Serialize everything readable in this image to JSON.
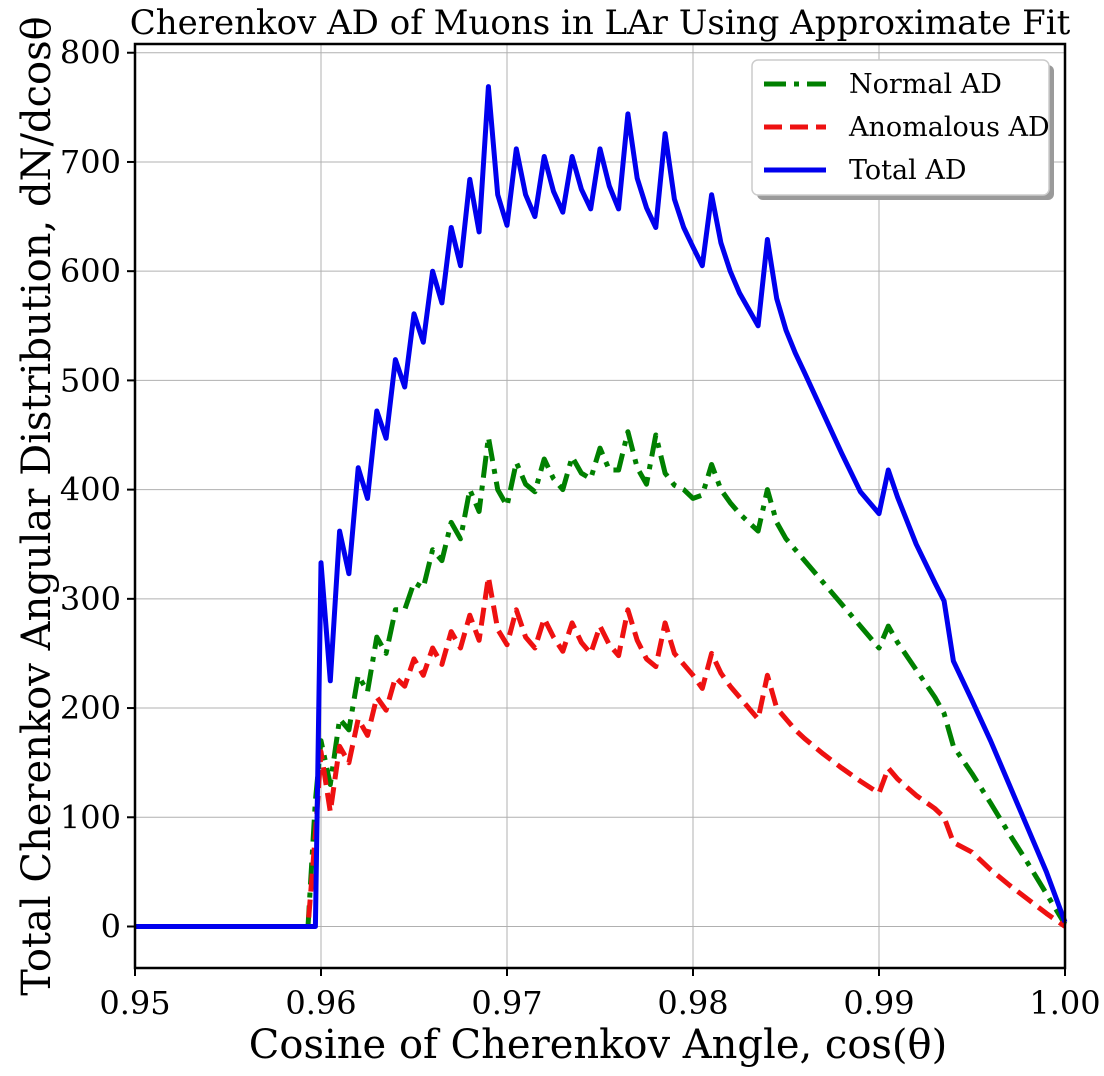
{
  "chart_data": {
    "type": "line",
    "title": "Cherenkov AD of Muons in LAr Using Approximate Fit",
    "xlabel": "Cosine of Cherenkov Angle, cos(θ)",
    "ylabel": "Total Cherenkov Angular Distribution, dN/dcosθ",
    "xlim": [
      0.95,
      1.0
    ],
    "ylim": [
      -38,
      808
    ],
    "xticks": [
      0.95,
      0.96,
      0.97,
      0.98,
      0.99,
      1.0
    ],
    "xtick_labels": [
      "0.95",
      "0.96",
      "0.97",
      "0.98",
      "0.99",
      "1.00"
    ],
    "yticks": [
      0,
      100,
      200,
      300,
      400,
      500,
      600,
      700,
      800
    ],
    "ytick_labels": [
      "0",
      "100",
      "200",
      "300",
      "400",
      "500",
      "600",
      "700",
      "800"
    ],
    "grid": true,
    "legend_position": "top-right",
    "series": [
      {
        "name": "Normal AD",
        "color": "#008000",
        "dash": "dashdot",
        "x": [
          0.95,
          0.9593,
          0.9597,
          0.96,
          0.9605,
          0.961,
          0.9615,
          0.962,
          0.9625,
          0.963,
          0.9635,
          0.964,
          0.9645,
          0.965,
          0.9655,
          0.966,
          0.9665,
          0.967,
          0.9675,
          0.968,
          0.9685,
          0.969,
          0.9695,
          0.97,
          0.9705,
          0.971,
          0.9715,
          0.972,
          0.9725,
          0.973,
          0.9735,
          0.974,
          0.9745,
          0.975,
          0.9755,
          0.976,
          0.9765,
          0.977,
          0.9775,
          0.978,
          0.9785,
          0.979,
          0.9795,
          0.98,
          0.9805,
          0.981,
          0.9815,
          0.982,
          0.9825,
          0.983,
          0.9835,
          0.984,
          0.9845,
          0.985,
          0.9855,
          0.986,
          0.987,
          0.988,
          0.989,
          0.99,
          0.9905,
          0.991,
          0.992,
          0.993,
          0.9935,
          0.994,
          0.995,
          0.996,
          0.997,
          0.998,
          0.999,
          1.0
        ],
        "y": [
          0,
          0,
          115,
          170,
          130,
          190,
          180,
          230,
          215,
          265,
          250,
          290,
          290,
          315,
          310,
          345,
          335,
          370,
          355,
          400,
          380,
          448,
          400,
          385,
          425,
          405,
          398,
          428,
          410,
          400,
          430,
          415,
          410,
          438,
          418,
          418,
          453,
          420,
          405,
          450,
          415,
          404,
          400,
          392,
          395,
          423,
          400,
          388,
          378,
          370,
          362,
          400,
          370,
          355,
          345,
          335,
          315,
          295,
          275,
          255,
          275,
          260,
          235,
          210,
          195,
          165,
          140,
          113,
          85,
          58,
          30,
          2
        ]
      },
      {
        "name": "Anomalous AD",
        "color": "#ee1111",
        "dash": "dashed",
        "x": [
          0.95,
          0.9593,
          0.9597,
          0.96,
          0.9605,
          0.961,
          0.9615,
          0.962,
          0.9625,
          0.963,
          0.9635,
          0.964,
          0.9645,
          0.965,
          0.9655,
          0.966,
          0.9665,
          0.967,
          0.9675,
          0.968,
          0.9685,
          0.969,
          0.9695,
          0.97,
          0.9705,
          0.971,
          0.9715,
          0.972,
          0.9725,
          0.973,
          0.9735,
          0.974,
          0.9745,
          0.975,
          0.9755,
          0.976,
          0.9765,
          0.977,
          0.9775,
          0.978,
          0.9785,
          0.979,
          0.9795,
          0.98,
          0.9805,
          0.981,
          0.9815,
          0.982,
          0.9825,
          0.983,
          0.9835,
          0.984,
          0.9845,
          0.985,
          0.9855,
          0.986,
          0.987,
          0.988,
          0.989,
          0.99,
          0.9905,
          0.991,
          0.992,
          0.993,
          0.9935,
          0.994,
          0.995,
          0.996,
          0.997,
          0.998,
          0.999,
          1.0
        ],
        "y": [
          0,
          0,
          85,
          160,
          105,
          165,
          150,
          190,
          175,
          210,
          198,
          228,
          220,
          245,
          230,
          255,
          240,
          270,
          255,
          285,
          262,
          320,
          272,
          258,
          290,
          265,
          255,
          282,
          265,
          252,
          278,
          260,
          250,
          275,
          258,
          248,
          290,
          262,
          245,
          238,
          278,
          250,
          240,
          230,
          218,
          250,
          232,
          220,
          210,
          200,
          190,
          230,
          200,
          190,
          180,
          172,
          158,
          145,
          133,
          122,
          145,
          135,
          120,
          108,
          100,
          77,
          68,
          52,
          38,
          25,
          12,
          0
        ]
      },
      {
        "name": "Total AD",
        "color": "#0000ee",
        "dash": "solid",
        "x": [
          0.95,
          0.9593,
          0.9597,
          0.96,
          0.9605,
          0.961,
          0.9615,
          0.962,
          0.9625,
          0.963,
          0.9635,
          0.964,
          0.9645,
          0.965,
          0.9655,
          0.966,
          0.9665,
          0.967,
          0.9675,
          0.968,
          0.9685,
          0.969,
          0.9695,
          0.97,
          0.9705,
          0.971,
          0.9715,
          0.972,
          0.9725,
          0.973,
          0.9735,
          0.974,
          0.9745,
          0.975,
          0.9755,
          0.976,
          0.9765,
          0.977,
          0.9775,
          0.978,
          0.9785,
          0.979,
          0.9795,
          0.98,
          0.9805,
          0.981,
          0.9815,
          0.982,
          0.9825,
          0.983,
          0.9835,
          0.984,
          0.9845,
          0.985,
          0.9855,
          0.986,
          0.987,
          0.988,
          0.989,
          0.99,
          0.9905,
          0.991,
          0.992,
          0.993,
          0.9935,
          0.994,
          0.995,
          0.996,
          0.997,
          0.998,
          0.999,
          1.0
        ],
        "y": [
          0,
          0,
          0,
          333,
          225,
          362,
          323,
          420,
          392,
          472,
          447,
          519,
          494,
          561,
          535,
          600,
          571,
          640,
          605,
          684,
          636,
          769,
          670,
          642,
          712,
          670,
          650,
          705,
          673,
          654,
          705,
          675,
          657,
          712,
          678,
          657,
          744,
          685,
          658,
          640,
          726,
          666,
          640,
          622,
          605,
          670,
          626,
          600,
          580,
          565,
          550,
          629,
          575,
          546,
          525,
          507,
          470,
          433,
          398,
          378,
          418,
          393,
          350,
          315,
          298,
          243,
          207,
          170,
          130,
          90,
          50,
          4
        ]
      }
    ]
  }
}
